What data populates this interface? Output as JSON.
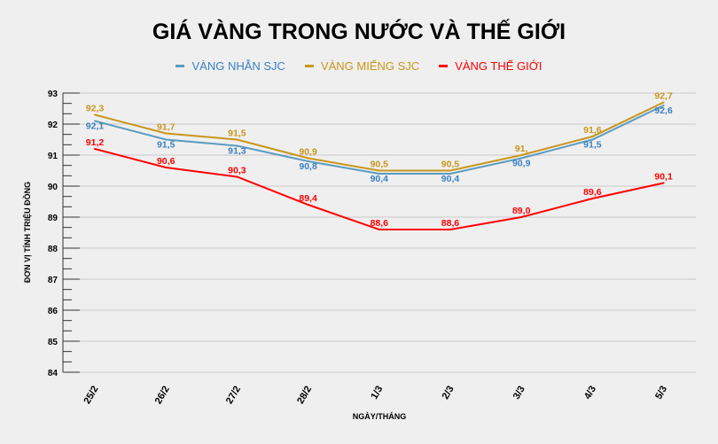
{
  "chart_data": {
    "type": "line",
    "title": "GIÁ VÀNG TRONG NƯỚC VÀ THẾ GIỚI",
    "xlabel": "NGÀY/THÁNG",
    "ylabel": "ĐƠN VỊ TÍNH TRIỆU ĐỒNG",
    "categories": [
      "25/2",
      "26/2",
      "27/2",
      "28/2",
      "1/3",
      "2/3",
      "3/3",
      "4/3",
      "5/3"
    ],
    "ylim": [
      84,
      93
    ],
    "yticks": [
      "84",
      "85",
      "86",
      "87",
      "88",
      "89",
      "90",
      "91",
      "92",
      "93"
    ],
    "grid": true,
    "legend": "top",
    "series": [
      {
        "name": "VÀNG NHẪN SJC",
        "color": "#5b9bc0",
        "label_color": "#3a80c4",
        "values": [
          92.1,
          91.5,
          91.3,
          90.8,
          90.4,
          90.4,
          90.9,
          91.5,
          92.6
        ],
        "labels": [
          "92,1",
          "91,5",
          "91,3",
          "90,8",
          "90,4",
          "90,4",
          "90,9",
          "91,5",
          "92,6"
        ]
      },
      {
        "name": "VÀNG MIẾNG SJC",
        "color": "#c8961a",
        "label_color": "#c8961a",
        "values": [
          92.3,
          91.7,
          91.5,
          90.9,
          90.5,
          90.5,
          91.0,
          91.6,
          92.7
        ],
        "labels": [
          "92,3",
          "91,7",
          "91,5",
          "90,9",
          "90,5",
          "90,5",
          "91,",
          "91,6",
          "92,7"
        ]
      },
      {
        "name": "VÀNG THẾ GIỚI",
        "color": "#ff0000",
        "label_color": "#ff0000",
        "values": [
          91.2,
          90.6,
          90.3,
          89.4,
          88.6,
          88.6,
          89.0,
          89.6,
          90.1
        ],
        "labels": [
          "91,2",
          "90,6",
          "90,3",
          "89,4",
          "88,6",
          "88,6",
          "89,0",
          "89,6",
          "90,1"
        ]
      }
    ]
  }
}
